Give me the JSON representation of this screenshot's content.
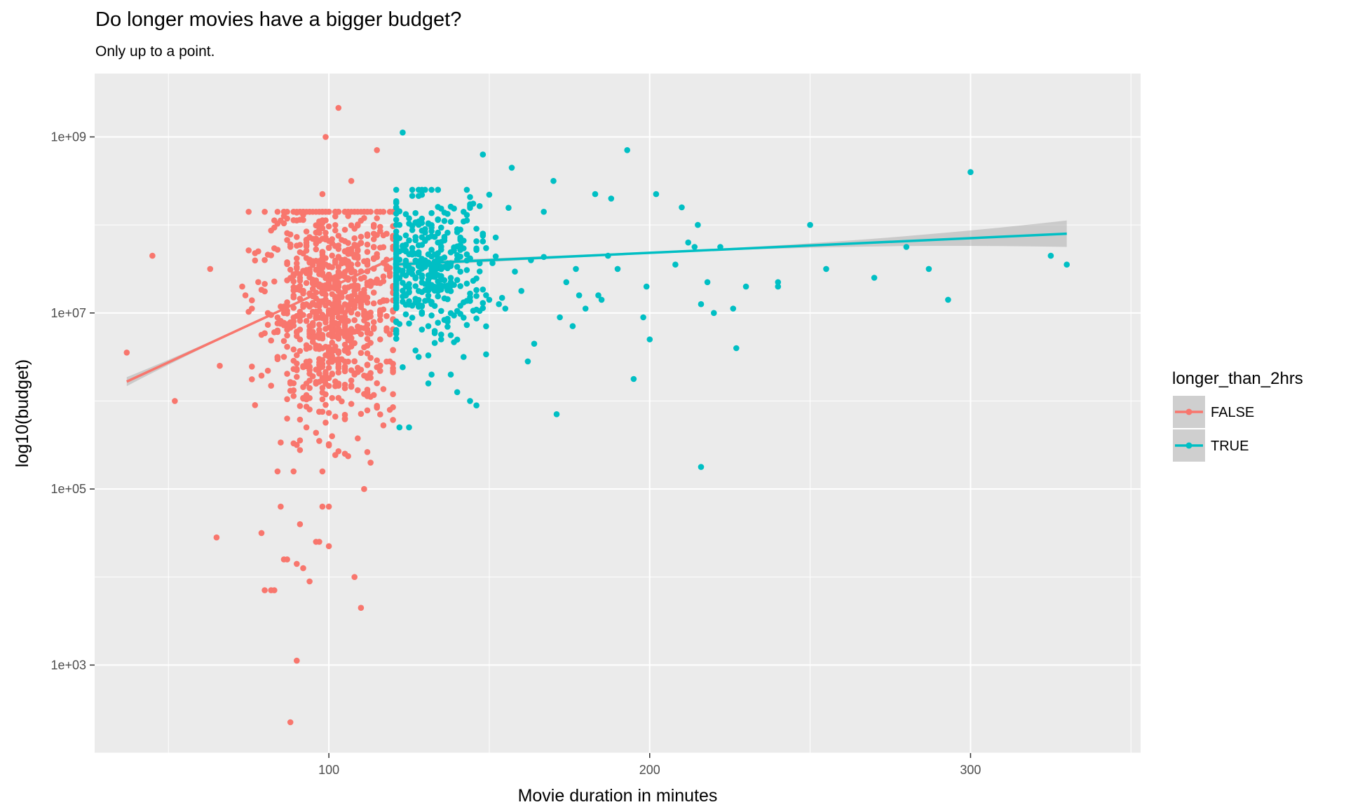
{
  "chart_data": {
    "type": "scatter",
    "title": "Do longer movies have a bigger budget?",
    "subtitle": "Only up to a point.",
    "xlabel": "Movie duration in minutes",
    "ylabel": "log10(budget)",
    "xlim": [
      27,
      353
    ],
    "ylog10lim": [
      2.0,
      9.72
    ],
    "x_ticks": [
      100,
      200,
      300
    ],
    "y_ticks": [
      {
        "log10": 3,
        "label": "1e+03"
      },
      {
        "log10": 5,
        "label": "1e+05"
      },
      {
        "log10": 7,
        "label": "1e+07"
      },
      {
        "log10": 9,
        "label": "1e+09"
      }
    ],
    "grid": true,
    "legend": {
      "title": "longer_than_2hrs",
      "position": "right",
      "entries": [
        {
          "label": "FALSE",
          "color": "#F8766D"
        },
        {
          "label": "TRUE",
          "color": "#00BFC4"
        }
      ]
    },
    "colors": {
      "panel": "#EBEBEB",
      "grid": "#FFFFFF",
      "ribbon": "#999999"
    },
    "series": [
      {
        "name": "FALSE",
        "color": "#F8766D",
        "points": [
          [
            37,
            6.55
          ],
          [
            45,
            7.65
          ],
          [
            52,
            6.0
          ],
          [
            63,
            7.5
          ],
          [
            65,
            4.45
          ],
          [
            66,
            6.4
          ],
          [
            73,
            7.3
          ],
          [
            74,
            7.2
          ],
          [
            76,
            7.05
          ],
          [
            78,
            7.7
          ],
          [
            79,
            4.5
          ],
          [
            80,
            3.85
          ],
          [
            82,
            3.85
          ],
          [
            83,
            3.85
          ],
          [
            84,
            5.2
          ],
          [
            85,
            4.8
          ],
          [
            86,
            4.2
          ],
          [
            87,
            4.2
          ],
          [
            88,
            2.35
          ],
          [
            90,
            3.05
          ],
          [
            90,
            4.15
          ],
          [
            91,
            4.6
          ],
          [
            92,
            4.1
          ],
          [
            94,
            3.95
          ],
          [
            96,
            4.4
          ],
          [
            97,
            4.4
          ],
          [
            98,
            4.8
          ],
          [
            99,
            9.0
          ],
          [
            100,
            4.35
          ],
          [
            100,
            4.8
          ],
          [
            103,
            9.33
          ],
          [
            108,
            4.0
          ],
          [
            110,
            3.65
          ],
          [
            111,
            5.0
          ],
          [
            113,
            5.3
          ],
          [
            115,
            8.85
          ],
          [
            118,
            7.9
          ],
          [
            119,
            5.9
          ],
          [
            107,
            8.5
          ],
          [
            98,
            8.35
          ],
          [
            85,
            8.05
          ],
          [
            90,
            5.5
          ],
          [
            93,
            5.7
          ],
          [
            101,
            5.6
          ],
          [
            105,
            5.8
          ],
          [
            88,
            6.2
          ],
          [
            84,
            6.5
          ],
          [
            96,
            6.6
          ],
          [
            108,
            6.3
          ],
          [
            112,
            6.1
          ],
          [
            116,
            6.7
          ]
        ],
        "cloud": {
          "x_mean": 101,
          "x_sd": 10,
          "x_min": 75,
          "x_max": 119.5,
          "y_mean": 7.1,
          "y_sd": 0.65,
          "y_min": 5.2,
          "y_max": 8.15,
          "count": 900
        },
        "trend": {
          "x": [
            37,
            120
          ],
          "y": [
            6.22,
            7.62
          ],
          "band": [
            0.07,
            0.01
          ]
        }
      },
      {
        "name": "TRUE",
        "color": "#00BFC4",
        "points": [
          [
            123,
            9.05
          ],
          [
            124,
            7.3
          ],
          [
            122,
            5.7
          ],
          [
            125,
            5.7
          ],
          [
            128,
            6.5
          ],
          [
            131,
            6.2
          ],
          [
            138,
            6.3
          ],
          [
            140,
            6.1
          ],
          [
            142,
            6.5
          ],
          [
            144,
            6.0
          ],
          [
            146,
            5.95
          ],
          [
            148,
            8.8
          ],
          [
            150,
            7.15
          ],
          [
            155,
            7.05
          ],
          [
            157,
            8.65
          ],
          [
            160,
            7.25
          ],
          [
            162,
            6.45
          ],
          [
            163,
            7.6
          ],
          [
            164,
            6.65
          ],
          [
            167,
            8.15
          ],
          [
            170,
            8.5
          ],
          [
            171,
            5.85
          ],
          [
            172,
            6.95
          ],
          [
            174,
            7.35
          ],
          [
            176,
            6.85
          ],
          [
            178,
            7.2
          ],
          [
            180,
            7.05
          ],
          [
            183,
            8.35
          ],
          [
            185,
            7.15
          ],
          [
            187,
            7.65
          ],
          [
            188,
            8.3
          ],
          [
            190,
            7.5
          ],
          [
            193,
            8.85
          ],
          [
            195,
            6.25
          ],
          [
            198,
            6.95
          ],
          [
            200,
            6.7
          ],
          [
            202,
            8.35
          ],
          [
            210,
            8.2
          ],
          [
            212,
            7.8
          ],
          [
            214,
            7.75
          ],
          [
            215,
            8.0
          ],
          [
            216,
            5.25
          ],
          [
            218,
            7.35
          ],
          [
            220,
            7.0
          ],
          [
            222,
            7.75
          ],
          [
            226,
            7.05
          ],
          [
            227,
            6.6
          ],
          [
            230,
            7.3
          ],
          [
            240,
            7.35
          ],
          [
            250,
            8.0
          ],
          [
            255,
            7.5
          ],
          [
            270,
            7.4
          ],
          [
            280,
            7.75
          ],
          [
            287,
            7.5
          ],
          [
            293,
            7.15
          ],
          [
            300,
            8.6
          ],
          [
            325,
            7.65
          ],
          [
            330,
            7.55
          ],
          [
            216,
            7.1
          ],
          [
            240,
            7.3
          ],
          [
            199,
            7.3
          ],
          [
            208,
            7.55
          ],
          [
            184,
            7.2
          ],
          [
            177,
            7.5
          ]
        ],
        "cloud": {
          "x_mean": 131,
          "x_sd": 10,
          "x_min": 120.5,
          "x_max": 175,
          "y_mean": 7.5,
          "y_sd": 0.4,
          "y_min": 6.3,
          "y_max": 8.4,
          "count": 420
        },
        "trend": {
          "x": [
            120,
            330
          ],
          "y": [
            7.55,
            7.9
          ],
          "band": [
            0.03,
            0.15
          ]
        }
      }
    ]
  }
}
